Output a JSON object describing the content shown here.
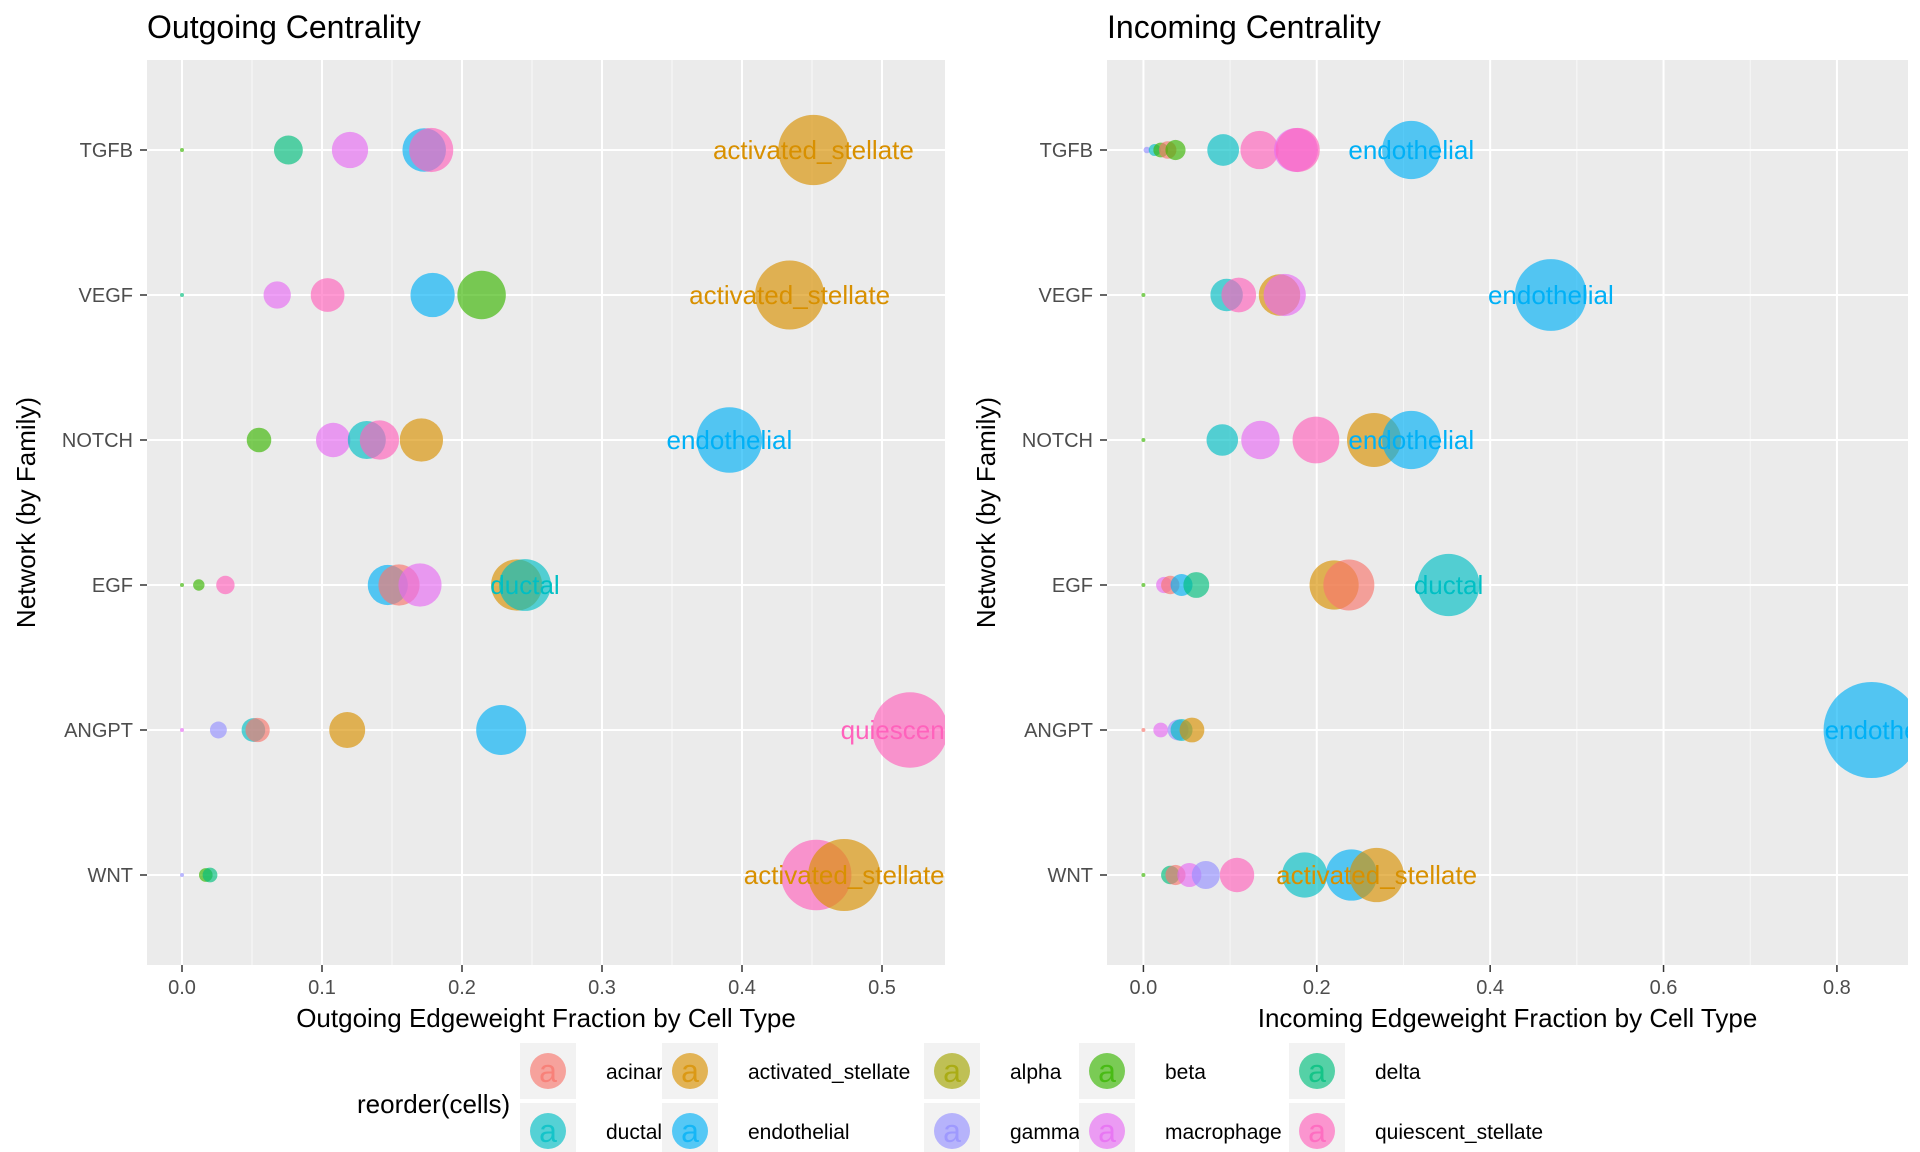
{
  "chart_data": [
    {
      "type": "scatter",
      "title": "Outgoing Centrality",
      "xlabel": "Outgoing Edgeweight Fraction by Cell Type",
      "ylabel": "Network (by Family)",
      "xlim": [
        -0.025,
        0.545
      ],
      "xticks": [
        0.0,
        0.1,
        0.2,
        0.3,
        0.4,
        0.5
      ],
      "xtick_labels": [
        "0.0",
        "0.1",
        "0.2",
        "0.3",
        "0.4",
        "0.5"
      ],
      "categories": [
        "TGFB",
        "VEGF",
        "NOTCH",
        "EGF",
        "ANGPT",
        "WNT"
      ],
      "grid": true,
      "points": [
        {
          "category": "TGFB",
          "cell": "beta",
          "x": 0.0,
          "value": 0.0
        },
        {
          "category": "TGFB",
          "cell": "delta",
          "x": 0.076,
          "value": 0.076
        },
        {
          "category": "TGFB",
          "cell": "macrophage",
          "x": 0.12,
          "value": 0.12
        },
        {
          "category": "TGFB",
          "cell": "endothelial",
          "x": 0.173,
          "value": 0.173
        },
        {
          "category": "TGFB",
          "cell": "quiescent_stellate",
          "x": 0.178,
          "value": 0.178
        },
        {
          "category": "TGFB",
          "cell": "activated_stellate",
          "x": 0.451,
          "value": 0.451,
          "label": "activated_stellate"
        },
        {
          "category": "VEGF",
          "cell": "delta",
          "x": 0.0,
          "value": 0.0
        },
        {
          "category": "VEGF",
          "cell": "macrophage",
          "x": 0.068,
          "value": 0.068
        },
        {
          "category": "VEGF",
          "cell": "quiescent_stellate",
          "x": 0.104,
          "value": 0.104
        },
        {
          "category": "VEGF",
          "cell": "endothelial",
          "x": 0.179,
          "value": 0.179
        },
        {
          "category": "VEGF",
          "cell": "beta",
          "x": 0.214,
          "value": 0.214
        },
        {
          "category": "VEGF",
          "cell": "activated_stellate",
          "x": 0.434,
          "value": 0.434,
          "label": "activated_stellate"
        },
        {
          "category": "NOTCH",
          "cell": "beta",
          "x": 0.055,
          "value": 0.055
        },
        {
          "category": "NOTCH",
          "cell": "macrophage",
          "x": 0.108,
          "value": 0.108
        },
        {
          "category": "NOTCH",
          "cell": "ductal",
          "x": 0.132,
          "value": 0.132
        },
        {
          "category": "NOTCH",
          "cell": "quiescent_stellate",
          "x": 0.141,
          "value": 0.141
        },
        {
          "category": "NOTCH",
          "cell": "activated_stellate",
          "x": 0.171,
          "value": 0.171
        },
        {
          "category": "NOTCH",
          "cell": "endothelial",
          "x": 0.391,
          "value": 0.391,
          "label": "endothelial"
        },
        {
          "category": "EGF",
          "cell": "beta",
          "x": 0.0,
          "value": 0.0
        },
        {
          "category": "EGF",
          "cell": "beta",
          "x": 0.012,
          "value": 0.012
        },
        {
          "category": "EGF",
          "cell": "quiescent_stellate",
          "x": 0.031,
          "value": 0.031
        },
        {
          "category": "EGF",
          "cell": "endothelial",
          "x": 0.147,
          "value": 0.147
        },
        {
          "category": "EGF",
          "cell": "acinar",
          "x": 0.155,
          "value": 0.155
        },
        {
          "category": "EGF",
          "cell": "macrophage",
          "x": 0.17,
          "value": 0.17
        },
        {
          "category": "EGF",
          "cell": "activated_stellate",
          "x": 0.239,
          "value": 0.239
        },
        {
          "category": "EGF",
          "cell": "ductal",
          "x": 0.245,
          "value": 0.245,
          "label": "ductal"
        },
        {
          "category": "ANGPT",
          "cell": "macrophage",
          "x": 0.0,
          "value": 0.0
        },
        {
          "category": "ANGPT",
          "cell": "gamma",
          "x": 0.026,
          "value": 0.026
        },
        {
          "category": "ANGPT",
          "cell": "ductal",
          "x": 0.051,
          "value": 0.051
        },
        {
          "category": "ANGPT",
          "cell": "acinar",
          "x": 0.054,
          "value": 0.054
        },
        {
          "category": "ANGPT",
          "cell": "activated_stellate",
          "x": 0.118,
          "value": 0.118
        },
        {
          "category": "ANGPT",
          "cell": "endothelial",
          "x": 0.228,
          "value": 0.228
        },
        {
          "category": "ANGPT",
          "cell": "quiescent_stellate",
          "x": 0.52,
          "value": 0.52,
          "label": "quiescent_s"
        },
        {
          "category": "WNT",
          "cell": "gamma",
          "x": 0.0,
          "value": 0.0
        },
        {
          "category": "WNT",
          "cell": "beta",
          "x": 0.017,
          "value": 0.017
        },
        {
          "category": "WNT",
          "cell": "delta",
          "x": 0.02,
          "value": 0.02
        },
        {
          "category": "WNT",
          "cell": "quiescent_stellate",
          "x": 0.453,
          "value": 0.453
        },
        {
          "category": "WNT",
          "cell": "activated_stellate",
          "x": 0.473,
          "value": 0.473,
          "label": "activated_stellate"
        }
      ]
    },
    {
      "type": "scatter",
      "title": "Incoming Centrality",
      "xlabel": "Incoming Edgeweight Fraction by Cell Type",
      "ylabel": "Network (by Family)",
      "xlim": [
        -0.042,
        0.882
      ],
      "xticks": [
        0.0,
        0.2,
        0.4,
        0.6,
        0.8
      ],
      "xtick_labels": [
        "0.0",
        "0.2",
        "0.4",
        "0.6",
        "0.8"
      ],
      "categories": [
        "TGFB",
        "VEGF",
        "NOTCH",
        "EGF",
        "ANGPT",
        "WNT"
      ],
      "grid": true,
      "points": [
        {
          "category": "TGFB",
          "cell": "gamma",
          "x": 0.004,
          "value": 0.004
        },
        {
          "category": "TGFB",
          "cell": "ductal",
          "x": 0.013,
          "value": 0.013
        },
        {
          "category": "TGFB",
          "cell": "beta",
          "x": 0.02,
          "value": 0.02
        },
        {
          "category": "TGFB",
          "cell": "acinar",
          "x": 0.028,
          "value": 0.028
        },
        {
          "category": "TGFB",
          "cell": "beta",
          "x": 0.037,
          "value": 0.037
        },
        {
          "category": "TGFB",
          "cell": "ductal",
          "x": 0.092,
          "value": 0.092
        },
        {
          "category": "TGFB",
          "cell": "quiescent_stellate",
          "x": 0.134,
          "value": 0.134
        },
        {
          "category": "TGFB",
          "cell": "macrophage",
          "x": 0.176,
          "value": 0.176
        },
        {
          "category": "TGFB",
          "cell": "quiescent_stellate",
          "x": 0.178,
          "value": 0.178
        },
        {
          "category": "TGFB",
          "cell": "endothelial",
          "x": 0.309,
          "value": 0.309,
          "label": "endothelial"
        },
        {
          "category": "VEGF",
          "cell": "beta",
          "x": 0.0,
          "value": 0.0
        },
        {
          "category": "VEGF",
          "cell": "ductal",
          "x": 0.096,
          "value": 0.096
        },
        {
          "category": "VEGF",
          "cell": "quiescent_stellate",
          "x": 0.11,
          "value": 0.11
        },
        {
          "category": "VEGF",
          "cell": "activated_stellate",
          "x": 0.157,
          "value": 0.157
        },
        {
          "category": "VEGF",
          "cell": "macrophage",
          "x": 0.163,
          "value": 0.163
        },
        {
          "category": "VEGF",
          "cell": "endothelial",
          "x": 0.47,
          "value": 0.47,
          "label": "endothelial"
        },
        {
          "category": "NOTCH",
          "cell": "beta",
          "x": 0.0,
          "value": 0.0
        },
        {
          "category": "NOTCH",
          "cell": "ductal",
          "x": 0.091,
          "value": 0.091
        },
        {
          "category": "NOTCH",
          "cell": "macrophage",
          "x": 0.135,
          "value": 0.135
        },
        {
          "category": "NOTCH",
          "cell": "quiescent_stellate",
          "x": 0.199,
          "value": 0.199
        },
        {
          "category": "NOTCH",
          "cell": "activated_stellate",
          "x": 0.266,
          "value": 0.266
        },
        {
          "category": "NOTCH",
          "cell": "endothelial",
          "x": 0.309,
          "value": 0.309,
          "label": "endothelial"
        },
        {
          "category": "EGF",
          "cell": "beta",
          "x": 0.0,
          "value": 0.0
        },
        {
          "category": "EGF",
          "cell": "macrophage",
          "x": 0.024,
          "value": 0.024
        },
        {
          "category": "EGF",
          "cell": "acinar",
          "x": 0.031,
          "value": 0.031
        },
        {
          "category": "EGF",
          "cell": "endothelial",
          "x": 0.044,
          "value": 0.044
        },
        {
          "category": "EGF",
          "cell": "delta",
          "x": 0.061,
          "value": 0.061
        },
        {
          "category": "EGF",
          "cell": "activated_stellate",
          "x": 0.22,
          "value": 0.22
        },
        {
          "category": "EGF",
          "cell": "acinar",
          "x": 0.237,
          "value": 0.237
        },
        {
          "category": "EGF",
          "cell": "ductal",
          "x": 0.352,
          "value": 0.352,
          "label": "ductal"
        },
        {
          "category": "ANGPT",
          "cell": "acinar",
          "x": 0.0,
          "value": 0.0
        },
        {
          "category": "ANGPT",
          "cell": "macrophage",
          "x": 0.02,
          "value": 0.02
        },
        {
          "category": "ANGPT",
          "cell": "gamma",
          "x": 0.04,
          "value": 0.04
        },
        {
          "category": "ANGPT",
          "cell": "ductal",
          "x": 0.044,
          "value": 0.044
        },
        {
          "category": "ANGPT",
          "cell": "activated_stellate",
          "x": 0.056,
          "value": 0.056
        },
        {
          "category": "ANGPT",
          "cell": "endothelial",
          "x": 0.84,
          "value": 0.84,
          "label": "endothe"
        },
        {
          "category": "WNT",
          "cell": "beta",
          "x": 0.0,
          "value": 0.0
        },
        {
          "category": "WNT",
          "cell": "delta",
          "x": 0.031,
          "value": 0.031
        },
        {
          "category": "WNT",
          "cell": "acinar",
          "x": 0.037,
          "value": 0.037
        },
        {
          "category": "WNT",
          "cell": "macrophage",
          "x": 0.053,
          "value": 0.053
        },
        {
          "category": "WNT",
          "cell": "gamma",
          "x": 0.072,
          "value": 0.072
        },
        {
          "category": "WNT",
          "cell": "quiescent_stellate",
          "x": 0.108,
          "value": 0.108
        },
        {
          "category": "WNT",
          "cell": "ductal",
          "x": 0.186,
          "value": 0.186
        },
        {
          "category": "WNT",
          "cell": "endothelial",
          "x": 0.24,
          "value": 0.24
        },
        {
          "category": "WNT",
          "cell": "activated_stellate",
          "x": 0.269,
          "value": 0.269,
          "label": "activated_stellate"
        }
      ]
    }
  ],
  "legend": {
    "title": "reorder(cells)",
    "placement": "bottom",
    "key_glyph": "a",
    "items": [
      {
        "name": "acinar",
        "color": "#F8766D"
      },
      {
        "name": "activated_stellate",
        "color": "#D89000"
      },
      {
        "name": "alpha",
        "color": "#A3A500"
      },
      {
        "name": "beta",
        "color": "#39B600"
      },
      {
        "name": "delta",
        "color": "#00BF7D"
      },
      {
        "name": "ductal",
        "color": "#00BFC4"
      },
      {
        "name": "endothelial",
        "color": "#00B0F6"
      },
      {
        "name": "gamma",
        "color": "#9590FF"
      },
      {
        "name": "macrophage",
        "color": "#E76BF3"
      },
      {
        "name": "quiescent_stellate",
        "color": "#FF62BC"
      }
    ]
  }
}
